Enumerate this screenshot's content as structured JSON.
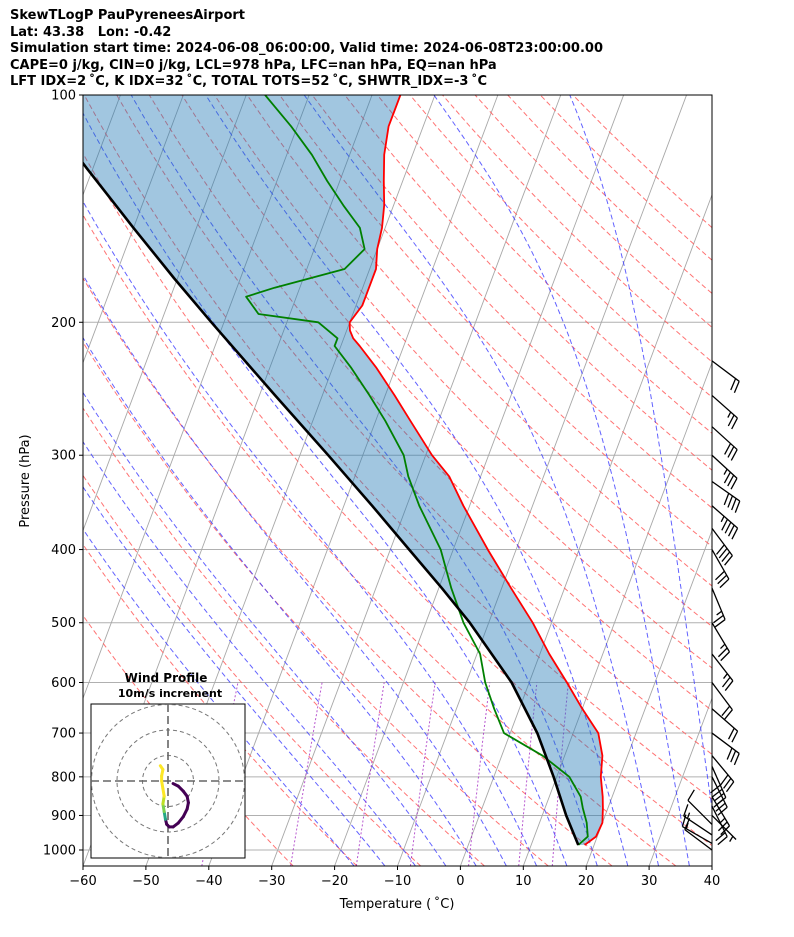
{
  "header": {
    "line1": "SkewTLogP PauPyreneesAirport",
    "line2": "Lat: 43.38   Lon: -0.42",
    "line3": "Simulation start time: 2024-06-08_06:00:00, Valid time: 2024-06-08T23:00:00.00",
    "line4": "CAPE=0 j/kg, CIN=0 j/kg, LCL=978 hPa, LFC=nan hPa, EQ=nan hPa",
    "line5": "LFT IDX=2 ˚C, K IDX=32 ˚C, TOTAL TOTS=52 ˚C, SHWTR_IDX=-3 ˚C"
  },
  "chart_data": {
    "type": "line",
    "subtype": "skewt-logp",
    "xlabel": "Temperature ( ˚C)",
    "ylabel": "Pressure (hPa)",
    "xlim": [
      -60,
      40
    ],
    "ylim": [
      1050,
      100
    ],
    "x_ticks": [
      -60,
      -50,
      -40,
      -30,
      -20,
      -10,
      0,
      10,
      20,
      30,
      40
    ],
    "y_ticks": [
      100,
      200,
      300,
      400,
      500,
      600,
      700,
      800,
      900,
      1000
    ],
    "skew_deg_per_decade": 45,
    "series": [
      {
        "name": "Temperature",
        "color": "#ff0000",
        "p": [
          985,
          960,
          920,
          880,
          850,
          800,
          750,
          700,
          650,
          600,
          550,
          500,
          450,
          400,
          350,
          320,
          300,
          270,
          250,
          230,
          215,
          210,
          205,
          200,
          190,
          180,
          170,
          160,
          150,
          140,
          130,
          120,
          110,
          105,
          100
        ],
        "t": [
          18.5,
          19.8,
          20.0,
          19.2,
          18.5,
          17.0,
          16.0,
          14.0,
          10.0,
          6.0,
          1.5,
          -3.0,
          -8.5,
          -14.5,
          -21.0,
          -25.0,
          -29.0,
          -34.5,
          -38.5,
          -43.0,
          -47.0,
          -48.5,
          -49.5,
          -50.0,
          -49.0,
          -49.0,
          -49.0,
          -50.0,
          -50.5,
          -51.5,
          -53.0,
          -54.5,
          -55.5,
          -55.5,
          -55.5
        ]
      },
      {
        "name": "Dewpoint",
        "color": "#008000",
        "p": [
          985,
          960,
          920,
          880,
          850,
          800,
          750,
          700,
          650,
          600,
          550,
          500,
          450,
          400,
          350,
          320,
          300,
          270,
          250,
          230,
          215,
          210,
          200,
          195,
          185,
          180,
          170,
          160,
          150,
          140,
          130,
          120,
          110,
          100
        ],
        "t": [
          17.5,
          18.5,
          17.5,
          16.0,
          15.0,
          12.0,
          6.5,
          -1.0,
          -4.0,
          -7.0,
          -9.5,
          -14.0,
          -18.0,
          -22.0,
          -28.0,
          -31.5,
          -33.5,
          -38.5,
          -42.5,
          -47.0,
          -51.0,
          -51.0,
          -55.0,
          -65.0,
          -68.0,
          -64.0,
          -54.0,
          -52.0,
          -54.0,
          -58.0,
          -62.0,
          -66.0,
          -71.0,
          -77.0
        ]
      },
      {
        "name": "Parcel",
        "color": "#000000",
        "p": [
          985,
          900,
          800,
          700,
          600,
          500,
          450,
          400,
          350,
          300,
          250,
          200,
          175,
          150,
          125,
          110,
          100
        ],
        "t": [
          17.5,
          13.8,
          9.5,
          4.3,
          -2.8,
          -13.0,
          -19.5,
          -27.0,
          -35.5,
          -45.5,
          -57.5,
          -72.0,
          -80.5,
          -90.0,
          -101.0,
          -108.5,
          -113.5
        ]
      }
    ],
    "hodograph": {
      "title": "Wind Profile",
      "subtitle": "10m/s increment",
      "ring_step_ms": 10,
      "u": [
        2.0,
        4.0,
        6.0,
        7.5,
        8.0,
        7.5,
        6.0,
        4.0,
        2.0,
        0.5,
        -0.5,
        -1.0,
        -1.5,
        -2.0,
        -1.5,
        -2.0,
        -2.5,
        -2.5,
        -2.0,
        -3.0
      ],
      "v": [
        -1.0,
        -2.0,
        -4.0,
        -6.0,
        -8.5,
        -11.0,
        -14.0,
        -16.5,
        -18.0,
        -18.0,
        -17.0,
        -15.0,
        -12.0,
        -9.0,
        -6.0,
        -3.0,
        0.0,
        2.0,
        4.5,
        6.0
      ]
    },
    "wind_barbs": {
      "p": [
        1000,
        980,
        955,
        925,
        900,
        875,
        850,
        800,
        775,
        750,
        700,
        650,
        600,
        550,
        500,
        450,
        400,
        375,
        350,
        325,
        300,
        275,
        250,
        225
      ],
      "u": [
        4,
        7,
        6,
        3,
        -1,
        -4,
        -6,
        -7,
        -8,
        -10,
        -12,
        -8,
        -6,
        -7,
        -6,
        -5,
        -8,
        -12,
        -16,
        -17,
        -13,
        -11,
        -9,
        -8
      ],
      "v": [
        -3,
        -4,
        -4,
        -3,
        1,
        8,
        10,
        14,
        18,
        12,
        9,
        7,
        8,
        9,
        10,
        12,
        14,
        16,
        14,
        12,
        12,
        10,
        8,
        6
      ]
    }
  }
}
